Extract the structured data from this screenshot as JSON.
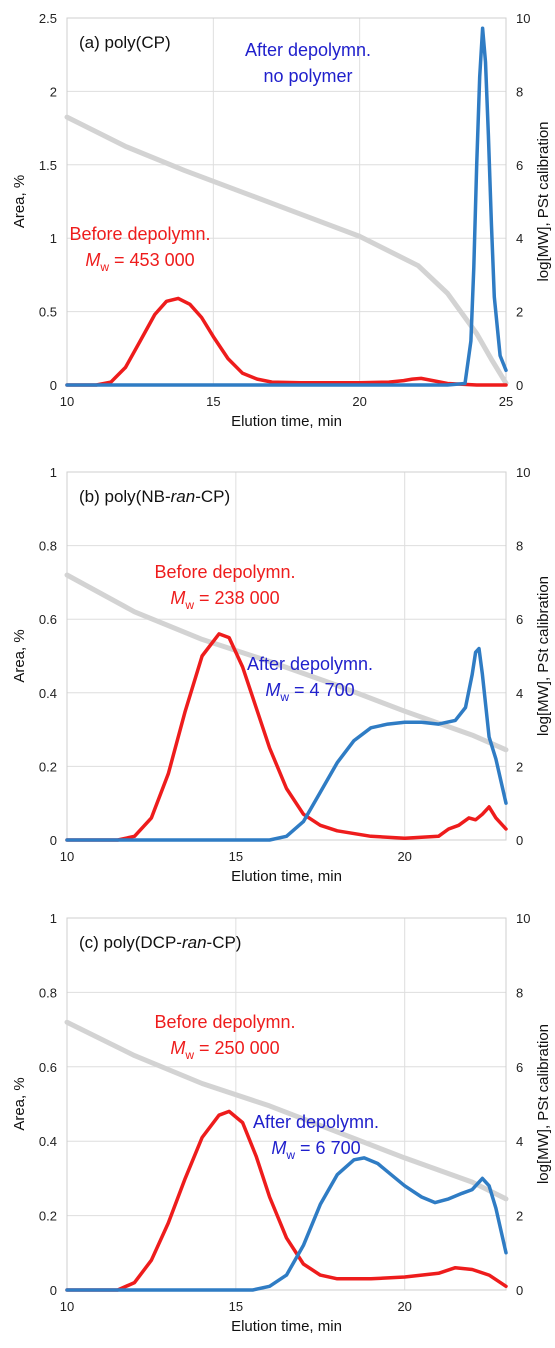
{
  "colors": {
    "before": "#ee1c1c",
    "after": "#2f7cc4",
    "calibration": "#d3d3d3",
    "after_label": "#2020cc"
  },
  "chart_data": [
    {
      "type": "line",
      "title": "(a) poly(CP)",
      "xlabel": "Elution time, min",
      "ylabel": "Area, %",
      "y2label": "log[MW], PSt calibration",
      "xlim": [
        10,
        25
      ],
      "ylim": [
        0,
        2.5
      ],
      "y2lim": [
        0,
        10
      ],
      "xticks": [
        "10",
        "15",
        "20",
        "25"
      ],
      "yticks": [
        "0",
        "0.5",
        "1",
        "1.5",
        "2",
        "2.5"
      ],
      "y2ticks": [
        "0",
        "2",
        "4",
        "6",
        "8",
        "10"
      ],
      "grid": true,
      "annotations": [
        {
          "series": "before",
          "line1": "Before depolymn.",
          "mw_prefix": "M",
          "mw_sub": "w",
          "mw_value": " = 453 000"
        },
        {
          "series": "after",
          "line1": "After depolymn.",
          "line2": "no polymer"
        }
      ],
      "series": [
        {
          "key": "before",
          "x": [
            10,
            11,
            11.5,
            12,
            12.5,
            13,
            13.4,
            13.8,
            14.2,
            14.6,
            15,
            15.5,
            16,
            16.5,
            17,
            18,
            19,
            20,
            21,
            21.5,
            21.8,
            22.1,
            22.5,
            23,
            23.5,
            24,
            25
          ],
          "values": [
            0,
            0,
            0.02,
            0.12,
            0.3,
            0.48,
            0.57,
            0.59,
            0.55,
            0.46,
            0.33,
            0.18,
            0.08,
            0.04,
            0.02,
            0.015,
            0.015,
            0.015,
            0.02,
            0.03,
            0.04,
            0.045,
            0.03,
            0.01,
            0.005,
            0,
            0
          ]
        },
        {
          "key": "after",
          "x": [
            10,
            23,
            23.6,
            23.8,
            23.9,
            24,
            24.1,
            24.2,
            24.3,
            24.4,
            24.5,
            24.6,
            24.8,
            25
          ],
          "values": [
            0,
            0,
            0.01,
            0.3,
            0.8,
            1.5,
            2.1,
            2.43,
            2.2,
            1.7,
            1.1,
            0.6,
            0.2,
            0.1
          ]
        },
        {
          "key": "calibration",
          "axis": "y2",
          "x": [
            10,
            12,
            14,
            16,
            18,
            20,
            22,
            23,
            24,
            24.5,
            25
          ],
          "values": [
            7.3,
            6.5,
            5.85,
            5.25,
            4.65,
            4.05,
            3.25,
            2.5,
            1.4,
            0.7,
            0.05
          ]
        }
      ]
    },
    {
      "type": "line",
      "title_pre": "(b) poly(NB-",
      "title_em": "ran",
      "title_post": "-CP)",
      "xlabel": "Elution time, min",
      "ylabel": "Area, %",
      "y2label": "log[MW], PSt calibration",
      "xlim": [
        10,
        23
      ],
      "ylim": [
        0,
        1
      ],
      "y2lim": [
        0,
        10
      ],
      "xticks": [
        "10",
        "15",
        "20"
      ],
      "yticks": [
        "0",
        "0.2",
        "0.4",
        "0.6",
        "0.8",
        "1"
      ],
      "y2ticks": [
        "0",
        "2",
        "4",
        "6",
        "8",
        "10"
      ],
      "grid": true,
      "annotations": [
        {
          "series": "before",
          "line1": "Before depolymn.",
          "mw_prefix": "M",
          "mw_sub": "w",
          "mw_value": " = 238 000"
        },
        {
          "series": "after",
          "line1": "After depolymn.",
          "mw_prefix": "M",
          "mw_sub": "w",
          "mw_value": " = 4 700"
        }
      ],
      "series": [
        {
          "key": "before",
          "x": [
            10,
            11.5,
            12,
            12.5,
            13,
            13.5,
            14,
            14.5,
            14.8,
            15.2,
            15.6,
            16,
            16.5,
            17,
            17.5,
            18,
            19,
            20,
            21,
            21.3,
            21.6,
            21.9,
            22.1,
            22.3,
            22.5,
            22.7,
            23
          ],
          "values": [
            0,
            0,
            0.01,
            0.06,
            0.18,
            0.35,
            0.5,
            0.56,
            0.55,
            0.47,
            0.36,
            0.25,
            0.14,
            0.07,
            0.04,
            0.025,
            0.01,
            0.005,
            0.01,
            0.03,
            0.04,
            0.06,
            0.055,
            0.07,
            0.09,
            0.06,
            0.03
          ]
        },
        {
          "key": "after",
          "x": [
            10,
            16,
            16.5,
            17,
            17.5,
            18,
            18.5,
            19,
            19.5,
            20,
            20.5,
            21,
            21.5,
            21.8,
            22,
            22.1,
            22.2,
            22.3,
            22.5,
            22.7,
            23
          ],
          "values": [
            0,
            0,
            0.01,
            0.05,
            0.13,
            0.21,
            0.27,
            0.305,
            0.315,
            0.32,
            0.32,
            0.315,
            0.325,
            0.36,
            0.45,
            0.51,
            0.52,
            0.45,
            0.28,
            0.22,
            0.1
          ]
        },
        {
          "key": "calibration",
          "axis": "y2",
          "x": [
            10,
            12,
            14,
            16,
            18,
            20,
            22,
            23
          ],
          "values": [
            7.2,
            6.2,
            5.45,
            4.85,
            4.2,
            3.5,
            2.85,
            2.45
          ]
        }
      ]
    },
    {
      "type": "line",
      "title_pre": "(c) poly(DCP-",
      "title_em": "ran",
      "title_post": "-CP)",
      "xlabel": "Elution time, min",
      "ylabel": "Area, %",
      "y2label": "log[MW], PSt calibration",
      "xlim": [
        10,
        23
      ],
      "ylim": [
        0,
        1
      ],
      "y2lim": [
        0,
        10
      ],
      "xticks": [
        "10",
        "15",
        "20"
      ],
      "yticks": [
        "0",
        "0.2",
        "0.4",
        "0.6",
        "0.8",
        "1"
      ],
      "y2ticks": [
        "0",
        "2",
        "4",
        "6",
        "8",
        "10"
      ],
      "grid": true,
      "annotations": [
        {
          "series": "before",
          "line1": "Before depolymn.",
          "mw_prefix": "M",
          "mw_sub": "w",
          "mw_value": " = 250 000"
        },
        {
          "series": "after",
          "line1": "After depolymn.",
          "mw_prefix": "M",
          "mw_sub": "w",
          "mw_value": " = 6 700"
        }
      ],
      "series": [
        {
          "key": "before",
          "x": [
            10,
            11.5,
            12,
            12.5,
            13,
            13.5,
            14,
            14.5,
            14.8,
            15.2,
            15.6,
            16,
            16.5,
            17,
            17.5,
            18,
            19,
            20,
            21,
            21.5,
            22,
            22.5,
            23
          ],
          "values": [
            0,
            0,
            0.02,
            0.08,
            0.18,
            0.3,
            0.41,
            0.47,
            0.48,
            0.45,
            0.36,
            0.25,
            0.14,
            0.07,
            0.04,
            0.03,
            0.03,
            0.035,
            0.045,
            0.06,
            0.055,
            0.04,
            0.01
          ]
        },
        {
          "key": "after",
          "x": [
            10,
            15.5,
            16,
            16.5,
            17,
            17.5,
            18,
            18.5,
            18.8,
            19.2,
            19.6,
            20,
            20.5,
            20.9,
            21.3,
            21.7,
            22,
            22.3,
            22.5,
            22.7,
            23
          ],
          "values": [
            0,
            0,
            0.01,
            0.04,
            0.12,
            0.23,
            0.31,
            0.35,
            0.355,
            0.34,
            0.31,
            0.28,
            0.25,
            0.235,
            0.245,
            0.26,
            0.27,
            0.3,
            0.28,
            0.22,
            0.1
          ]
        },
        {
          "key": "calibration",
          "axis": "y2",
          "x": [
            10,
            12,
            14,
            16,
            18,
            20,
            22,
            23
          ],
          "values": [
            7.2,
            6.3,
            5.55,
            4.95,
            4.25,
            3.55,
            2.9,
            2.45
          ]
        }
      ]
    }
  ]
}
